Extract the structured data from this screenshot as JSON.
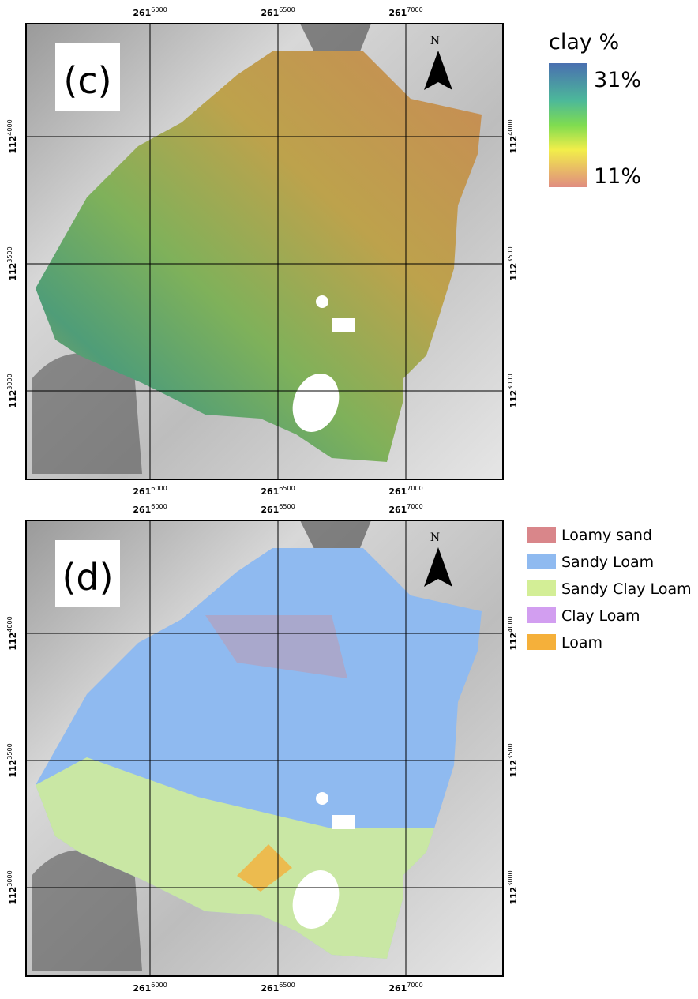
{
  "panels": [
    {
      "label": "(c)",
      "north": "N",
      "top_ticks": [
        {
          "base": "261",
          "exp": "6000"
        },
        {
          "base": "261",
          "exp": "6500"
        },
        {
          "base": "261",
          "exp": "7000"
        }
      ],
      "bottom_ticks": [
        {
          "base": "261",
          "exp": "6000"
        },
        {
          "base": "261",
          "exp": "6500"
        },
        {
          "base": "261",
          "exp": "7000"
        }
      ],
      "left_ticks": [
        {
          "base": "112",
          "exp": "4000"
        },
        {
          "base": "112",
          "exp": "3500"
        },
        {
          "base": "112",
          "exp": "3000"
        }
      ],
      "right_ticks": [
        {
          "base": "112",
          "exp": "4000"
        },
        {
          "base": "112",
          "exp": "3500"
        },
        {
          "base": "112",
          "exp": "3000"
        }
      ]
    },
    {
      "label": "(d)",
      "north": "N",
      "top_ticks": [
        {
          "base": "261",
          "exp": "6000"
        },
        {
          "base": "261",
          "exp": "6500"
        },
        {
          "base": "261",
          "exp": "7000"
        }
      ],
      "bottom_ticks": [
        {
          "base": "261",
          "exp": "6000"
        },
        {
          "base": "261",
          "exp": "6500"
        },
        {
          "base": "261",
          "exp": "7000"
        }
      ],
      "left_ticks": [
        {
          "base": "112",
          "exp": "4000"
        },
        {
          "base": "112",
          "exp": "3500"
        },
        {
          "base": "112",
          "exp": "3000"
        }
      ],
      "right_ticks": [
        {
          "base": "112",
          "exp": "4000"
        },
        {
          "base": "112",
          "exp": "3500"
        },
        {
          "base": "112",
          "exp": "3000"
        }
      ]
    }
  ],
  "clay_legend": {
    "title": "clay %",
    "max": "31%",
    "min": "11%"
  },
  "texture_legend": [
    {
      "label": "Loamy sand",
      "color": "#d9868a"
    },
    {
      "label": "Sandy Loam",
      "color": "#8fbaf0"
    },
    {
      "label": "Sandy Clay Loam",
      "color": "#d3ee96"
    },
    {
      "label": "Clay Loam",
      "color": "#d29ef0"
    },
    {
      "label": "Loam",
      "color": "#f5b03a"
    }
  ]
}
